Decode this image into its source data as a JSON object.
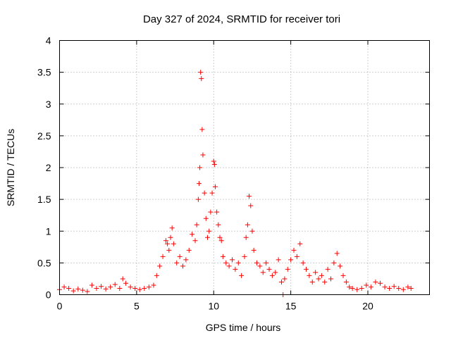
{
  "chart_data": {
    "type": "scatter",
    "title": "Day 327 of 2024, SRMTID for receiver tori",
    "xlabel": "GPS time / hours",
    "ylabel": "SRMTID / TECUs",
    "xlim": [
      0,
      24
    ],
    "ylim": [
      0,
      4
    ],
    "xticks": [
      0,
      5,
      10,
      15,
      20
    ],
    "xtick_labels": [
      "0",
      "5",
      "10",
      "15",
      "20"
    ],
    "yticks": [
      0,
      0.5,
      1,
      1.5,
      2,
      2.5,
      3,
      3.5,
      4
    ],
    "ytick_labels": [
      "0",
      "0.5",
      "1",
      "1.5",
      "2",
      "2.5",
      "3",
      "3.5",
      "4"
    ],
    "grid": true,
    "marker": "+",
    "marker_color": "#ff0000",
    "series": [
      {
        "name": "SRMTID",
        "x": [
          0.0,
          0.3,
          0.6,
          0.9,
          1.2,
          1.5,
          1.8,
          2.1,
          2.4,
          2.7,
          3.0,
          3.3,
          3.6,
          3.9,
          4.1,
          4.3,
          4.6,
          4.9,
          5.2,
          5.5,
          5.8,
          6.1,
          6.3,
          6.5,
          6.7,
          6.9,
          7.0,
          7.1,
          7.2,
          7.3,
          7.4,
          7.6,
          7.8,
          8.0,
          8.2,
          8.4,
          8.6,
          8.8,
          8.9,
          9.0,
          9.05,
          9.1,
          9.15,
          9.2,
          9.25,
          9.3,
          9.4,
          9.5,
          9.6,
          9.7,
          9.8,
          9.9,
          10.0,
          10.05,
          10.1,
          10.2,
          10.3,
          10.4,
          10.5,
          10.6,
          10.8,
          11.0,
          11.2,
          11.4,
          11.6,
          11.8,
          12.0,
          12.1,
          12.2,
          12.3,
          12.4,
          12.5,
          12.6,
          12.8,
          13.0,
          13.2,
          13.4,
          13.6,
          13.8,
          14.0,
          14.2,
          14.4,
          14.5,
          14.6,
          14.8,
          15.0,
          15.2,
          15.4,
          15.6,
          15.8,
          16.0,
          16.2,
          16.4,
          16.6,
          16.8,
          17.0,
          17.2,
          17.4,
          17.6,
          17.8,
          18.0,
          18.2,
          18.4,
          18.6,
          18.8,
          19.0,
          19.3,
          19.6,
          19.9,
          20.2,
          20.5,
          20.8,
          21.1,
          21.4,
          21.7,
          22.0,
          22.3,
          22.6,
          22.8
        ],
        "y": [
          0.08,
          0.12,
          0.1,
          0.06,
          0.09,
          0.07,
          0.05,
          0.15,
          0.1,
          0.13,
          0.09,
          0.12,
          0.16,
          0.1,
          0.25,
          0.18,
          0.12,
          0.1,
          0.08,
          0.1,
          0.12,
          0.15,
          0.3,
          0.45,
          0.6,
          0.85,
          0.8,
          0.7,
          0.9,
          1.05,
          0.8,
          0.5,
          0.6,
          0.45,
          0.55,
          0.7,
          0.95,
          0.85,
          1.1,
          1.5,
          1.75,
          2.0,
          3.5,
          3.4,
          2.6,
          2.2,
          1.6,
          1.2,
          0.9,
          1.0,
          1.3,
          1.6,
          2.1,
          2.05,
          1.7,
          1.3,
          1.1,
          0.9,
          0.85,
          0.6,
          0.5,
          0.45,
          0.55,
          0.4,
          0.5,
          0.3,
          0.6,
          0.9,
          1.1,
          1.55,
          1.4,
          1.0,
          0.7,
          0.5,
          0.45,
          0.35,
          0.5,
          0.4,
          0.3,
          0.35,
          0.55,
          0.2,
          0.0,
          0.25,
          0.4,
          0.55,
          0.7,
          0.6,
          0.8,
          0.5,
          0.4,
          0.3,
          0.2,
          0.35,
          0.25,
          0.3,
          0.2,
          0.4,
          0.25,
          0.5,
          0.65,
          0.45,
          0.3,
          0.2,
          0.12,
          0.1,
          0.08,
          0.1,
          0.15,
          0.12,
          0.2,
          0.18,
          0.12,
          0.1,
          0.13,
          0.1,
          0.08,
          0.12,
          0.1
        ]
      }
    ]
  }
}
